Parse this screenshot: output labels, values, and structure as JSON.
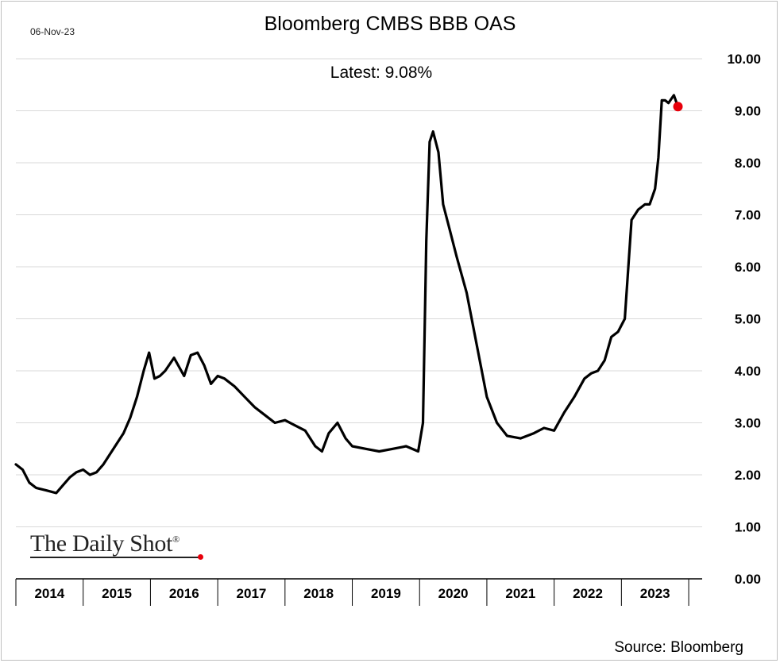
{
  "header": {
    "date": "06-Nov-23",
    "title": "Bloomberg CMBS BBB OAS",
    "latest_label": "Latest:  9.08%"
  },
  "footer": {
    "source": "Source: Bloomberg"
  },
  "brand": {
    "name": "The Daily Shot",
    "mark": "®",
    "accent_color": "#e8000b"
  },
  "chart_data": {
    "type": "line",
    "title": "Bloomberg CMBS BBB OAS",
    "xlabel": "",
    "ylabel": "",
    "ylim": [
      0,
      10
    ],
    "xlim": [
      2014,
      2024.2
    ],
    "y_ticks": [
      "0.00",
      "1.00",
      "2.00",
      "3.00",
      "4.00",
      "5.00",
      "6.00",
      "7.00",
      "8.00",
      "9.00",
      "10.00"
    ],
    "x_categories": [
      "2014",
      "2015",
      "2016",
      "2017",
      "2018",
      "2019",
      "2020",
      "2021",
      "2022",
      "2023"
    ],
    "grid": true,
    "line_color": "#000000",
    "marker_color": "#e8000b",
    "latest": {
      "x": 2023.84,
      "y": 9.08
    },
    "series": [
      {
        "name": "Bloomberg CMBS BBB OAS",
        "x": [
          2014.0,
          2014.1,
          2014.2,
          2014.3,
          2014.45,
          2014.6,
          2014.7,
          2014.8,
          2014.9,
          2015.0,
          2015.1,
          2015.2,
          2015.3,
          2015.45,
          2015.6,
          2015.7,
          2015.8,
          2015.9,
          2015.98,
          2016.06,
          2016.14,
          2016.22,
          2016.35,
          2016.5,
          2016.6,
          2016.7,
          2016.8,
          2016.9,
          2017.0,
          2017.1,
          2017.25,
          2017.4,
          2017.55,
          2017.7,
          2017.85,
          2018.0,
          2018.15,
          2018.3,
          2018.45,
          2018.55,
          2018.65,
          2018.78,
          2018.9,
          2019.0,
          2019.2,
          2019.4,
          2019.6,
          2019.8,
          2019.98,
          2020.05,
          2020.1,
          2020.15,
          2020.2,
          2020.28,
          2020.35,
          2020.45,
          2020.55,
          2020.7,
          2020.85,
          2021.0,
          2021.15,
          2021.3,
          2021.5,
          2021.7,
          2021.85,
          2022.0,
          2022.15,
          2022.3,
          2022.45,
          2022.55,
          2022.65,
          2022.75,
          2022.85,
          2022.95,
          2023.05,
          2023.15,
          2023.25,
          2023.35,
          2023.42,
          2023.5,
          2023.55,
          2023.6,
          2023.65,
          2023.7,
          2023.78,
          2023.84
        ],
        "values": [
          2.2,
          2.1,
          1.85,
          1.75,
          1.7,
          1.65,
          1.8,
          1.95,
          2.05,
          2.1,
          2.0,
          2.05,
          2.2,
          2.5,
          2.8,
          3.1,
          3.5,
          4.0,
          4.35,
          3.85,
          3.9,
          4.0,
          4.25,
          3.9,
          4.3,
          4.35,
          4.1,
          3.75,
          3.9,
          3.85,
          3.7,
          3.5,
          3.3,
          3.15,
          3.0,
          3.05,
          2.95,
          2.85,
          2.55,
          2.45,
          2.8,
          3.0,
          2.7,
          2.55,
          2.5,
          2.45,
          2.5,
          2.55,
          2.45,
          3.0,
          6.5,
          8.4,
          8.6,
          8.2,
          7.2,
          6.7,
          6.2,
          5.5,
          4.5,
          3.5,
          3.0,
          2.75,
          2.7,
          2.8,
          2.9,
          2.85,
          3.2,
          3.5,
          3.85,
          3.95,
          4.0,
          4.2,
          4.65,
          4.75,
          5.0,
          6.9,
          7.1,
          7.2,
          7.2,
          7.5,
          8.1,
          9.2,
          9.2,
          9.15,
          9.3,
          9.08
        ]
      }
    ]
  }
}
